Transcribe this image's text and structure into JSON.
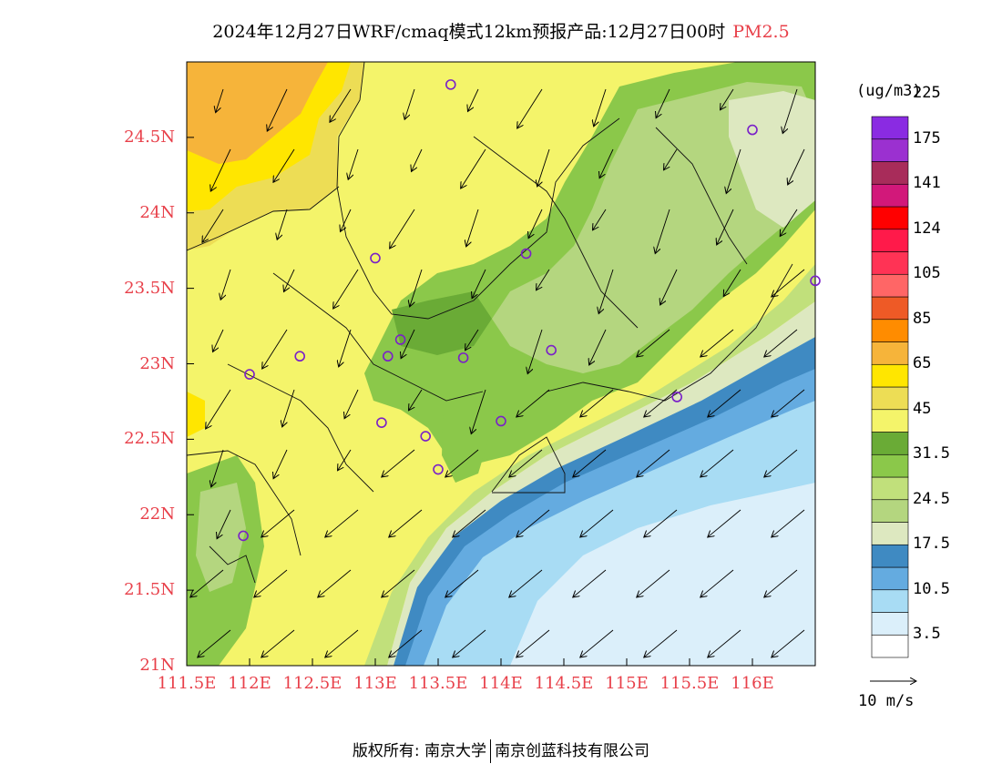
{
  "title": {
    "main": "2024年12月27日WRF/cmaq模式12km预报产品:12月27日00时",
    "variable": "PM2.5"
  },
  "map": {
    "lon_range": [
      111.5,
      116.5
    ],
    "lat_range": [
      21,
      25
    ],
    "lat_labels": [
      "24.5N",
      "24N",
      "23.5N",
      "23N",
      "22.5N",
      "22N",
      "21.5N",
      "21N"
    ],
    "lat_values": [
      24.5,
      24,
      23.5,
      23,
      22.5,
      22,
      21.5,
      21
    ],
    "lon_labels": [
      "111.5E",
      "112E",
      "112.5E",
      "113E",
      "113.5E",
      "114E",
      "114.5E",
      "115E",
      "115.5E",
      "116E"
    ],
    "lon_values": [
      111.5,
      112,
      112.5,
      113,
      113.5,
      114,
      114.5,
      115,
      115.5,
      116
    ],
    "stations": [
      {
        "lon": 113.6,
        "lat": 24.85
      },
      {
        "lon": 116.0,
        "lat": 24.55
      },
      {
        "lon": 113.0,
        "lat": 23.7
      },
      {
        "lon": 114.2,
        "lat": 23.73
      },
      {
        "lon": 116.5,
        "lat": 23.55
      },
      {
        "lon": 113.2,
        "lat": 23.16
      },
      {
        "lon": 112.4,
        "lat": 23.05
      },
      {
        "lon": 113.1,
        "lat": 23.05
      },
      {
        "lon": 113.7,
        "lat": 23.04
      },
      {
        "lon": 114.4,
        "lat": 23.09
      },
      {
        "lon": 112.0,
        "lat": 22.93
      },
      {
        "lon": 115.4,
        "lat": 22.78
      },
      {
        "lon": 113.05,
        "lat": 22.61
      },
      {
        "lon": 114.0,
        "lat": 22.62
      },
      {
        "lon": 113.4,
        "lat": 22.52
      },
      {
        "lon": 113.5,
        "lat": 22.3
      },
      {
        "lon": 111.95,
        "lat": 21.86
      }
    ]
  },
  "colorbar": {
    "unit": "(ug/m3)",
    "colors": [
      "#ffffff",
      "#dbeffa",
      "#a8dcf4",
      "#64abe0",
      "#3f8ac2",
      "#dde8c0",
      "#b4d67f",
      "#c1e07b",
      "#8bc84a",
      "#6aab36",
      "#f4f46a",
      "#eddd55",
      "#ffe600",
      "#f6b43a",
      "#ff8c00",
      "#ee5a26",
      "#ff6666",
      "#ff3355",
      "#ff1a4a",
      "#ff0000",
      "#d2187a",
      "#a82c5a",
      "#9b30d0",
      "#8a2be2"
    ],
    "labels": [
      "3.5",
      "10.5",
      "17.5",
      "24.5",
      "31.5",
      "45",
      "65",
      "85",
      "105",
      "124",
      "141",
      "175",
      "225"
    ]
  },
  "wind_reference": "10 m/s",
  "footer": {
    "left": "版权所有: 南京大学",
    "right": "南京创蓝科技有限公司"
  }
}
